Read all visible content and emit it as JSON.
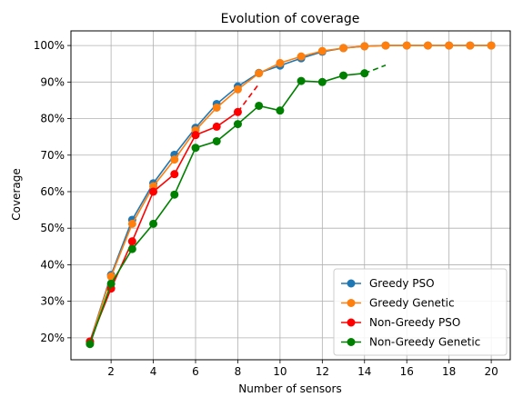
{
  "chart_data": {
    "type": "line",
    "title": "Evolution of coverage",
    "xlabel": "Number of sensors",
    "ylabel": "Coverage",
    "xlim": [
      0.1,
      20.9
    ],
    "ylim": [
      0.14,
      1.04
    ],
    "xticks": [
      2,
      4,
      6,
      8,
      10,
      12,
      14,
      16,
      18,
      20
    ],
    "yticks": [
      0.2,
      0.3,
      0.4,
      0.5,
      0.6,
      0.7,
      0.8,
      0.9,
      1.0
    ],
    "ytick_labels": [
      "20%",
      "30%",
      "40%",
      "50%",
      "60%",
      "70%",
      "80%",
      "90%",
      "100%"
    ],
    "grid": true,
    "legend_position": "lower-right",
    "series": [
      {
        "name": "Greedy PSO",
        "color": "#1f77b4",
        "x": [
          1,
          2,
          3,
          4,
          5,
          6,
          7,
          8,
          9,
          10,
          11,
          12,
          13,
          14,
          15,
          16,
          17,
          18,
          19,
          20
        ],
        "values": [
          0.19,
          0.372,
          0.523,
          0.623,
          0.701,
          0.775,
          0.84,
          0.888,
          0.925,
          0.945,
          0.965,
          0.983,
          0.993,
          0.998,
          1.0,
          1.0,
          1.0,
          1.0,
          1.0,
          1.0
        ]
      },
      {
        "name": "Greedy Genetic",
        "color": "#ff7f0e",
        "x": [
          1,
          2,
          3,
          4,
          5,
          6,
          7,
          8,
          9,
          10,
          11,
          12,
          13,
          14,
          15,
          16,
          17,
          18,
          19,
          20
        ],
        "values": [
          0.188,
          0.368,
          0.512,
          0.615,
          0.688,
          0.768,
          0.83,
          0.88,
          0.924,
          0.952,
          0.97,
          0.985,
          0.993,
          0.998,
          1.0,
          1.0,
          1.0,
          1.0,
          1.0,
          1.0
        ]
      },
      {
        "name": "Non-Greedy PSO",
        "color": "#ff0000",
        "x": [
          1,
          2,
          3,
          4,
          5,
          6,
          7,
          8
        ],
        "values": [
          0.19,
          0.335,
          0.464,
          0.6,
          0.648,
          0.755,
          0.778,
          0.818
        ],
        "extension": {
          "x": [
            8,
            9
          ],
          "values": [
            0.818,
            0.895
          ]
        }
      },
      {
        "name": "Non-Greedy Genetic",
        "color": "#008000",
        "x": [
          1,
          2,
          3,
          4,
          5,
          6,
          7,
          8,
          9,
          10,
          11,
          12,
          13,
          14
        ],
        "values": [
          0.183,
          0.348,
          0.443,
          0.512,
          0.592,
          0.72,
          0.738,
          0.785,
          0.835,
          0.822,
          0.903,
          0.9,
          0.918,
          0.924
        ],
        "extension": {
          "x": [
            14,
            15
          ],
          "values": [
            0.924,
            0.946
          ]
        }
      }
    ]
  }
}
